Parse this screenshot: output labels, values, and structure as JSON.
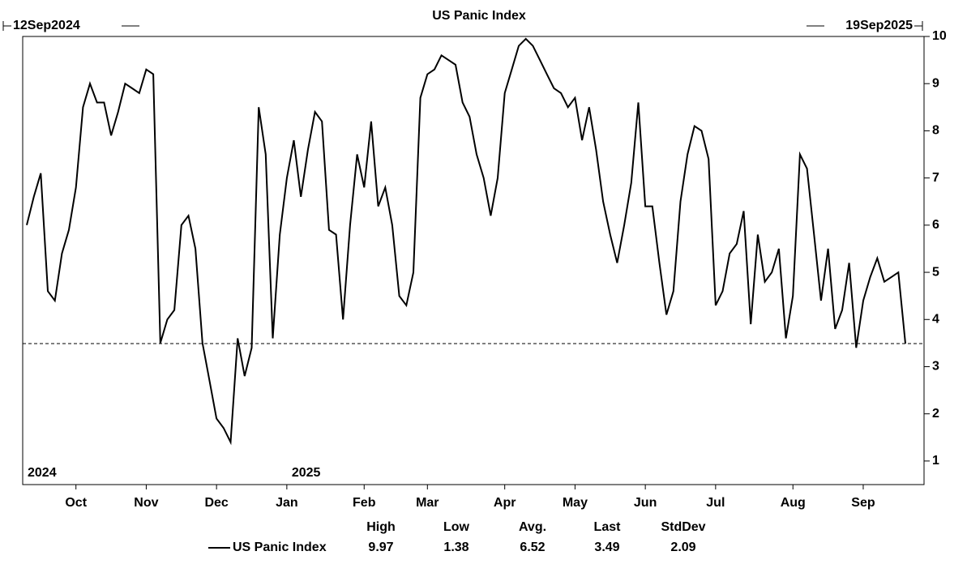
{
  "chart_data": {
    "type": "line",
    "title": "US Panic Index",
    "start_label": "12Sep2024",
    "end_label": "19Sep2025",
    "years": [
      "2024",
      "2025"
    ],
    "categories": [
      null,
      null,
      null,
      null,
      null,
      null,
      null,
      "Oct",
      null,
      null,
      null,
      null,
      null,
      null,
      null,
      null,
      null,
      "Nov",
      null,
      null,
      null,
      null,
      null,
      null,
      null,
      null,
      null,
      "Dec",
      null,
      null,
      null,
      null,
      null,
      null,
      null,
      null,
      null,
      "Jan",
      null,
      null,
      null,
      null,
      null,
      null,
      null,
      null,
      null,
      null,
      "Feb",
      null,
      null,
      null,
      null,
      null,
      null,
      null,
      null,
      "Mar",
      null,
      null,
      null,
      null,
      null,
      null,
      null,
      null,
      null,
      null,
      "Apr",
      null,
      null,
      null,
      null,
      null,
      null,
      null,
      null,
      null,
      "May",
      null,
      null,
      null,
      null,
      null,
      null,
      null,
      null,
      null,
      "Jun",
      null,
      null,
      null,
      null,
      null,
      null,
      null,
      null,
      null,
      "Jul",
      null,
      null,
      null,
      null,
      null,
      null,
      null,
      null,
      null,
      null,
      "Aug",
      null,
      null,
      null,
      null,
      null,
      null,
      null,
      null,
      null,
      "Sep",
      null,
      null,
      null,
      null,
      null,
      null
    ],
    "series": [
      {
        "name": "US Panic Index",
        "color": "#000000",
        "values": [
          6.0,
          6.6,
          7.1,
          4.6,
          4.4,
          5.4,
          5.9,
          6.8,
          8.5,
          9.0,
          8.6,
          8.6,
          7.9,
          8.4,
          9.0,
          8.9,
          8.8,
          9.3,
          9.2,
          3.5,
          4.0,
          4.2,
          6.0,
          6.2,
          5.5,
          3.5,
          2.7,
          1.9,
          1.7,
          1.4,
          3.6,
          2.8,
          3.4,
          8.5,
          7.5,
          3.6,
          5.8,
          7.0,
          7.8,
          6.6,
          7.6,
          8.4,
          8.2,
          5.9,
          5.8,
          4.0,
          6.0,
          7.5,
          6.8,
          8.2,
          6.4,
          6.8,
          6.0,
          4.5,
          4.3,
          5.0,
          8.7,
          9.2,
          9.3,
          9.6,
          9.5,
          9.4,
          8.6,
          8.3,
          7.5,
          7.0,
          6.2,
          7.0,
          8.8,
          9.3,
          9.8,
          9.95,
          9.8,
          9.5,
          9.2,
          8.9,
          8.8,
          8.5,
          8.7,
          7.8,
          8.5,
          7.6,
          6.5,
          5.8,
          5.2,
          6.0,
          6.9,
          8.6,
          6.4,
          6.4,
          5.2,
          4.1,
          4.6,
          6.5,
          7.5,
          8.1,
          8.0,
          7.4,
          4.3,
          4.6,
          5.4,
          5.6,
          6.3,
          3.9,
          5.8,
          4.8,
          5.0,
          5.5,
          3.6,
          4.5,
          7.5,
          7.2,
          5.8,
          4.4,
          5.5,
          3.8,
          4.2,
          5.2,
          3.4,
          4.4,
          4.9,
          5.3,
          4.8,
          4.9,
          5.0,
          3.49
        ]
      }
    ],
    "ylim": [
      0.5,
      10
    ],
    "yticks": [
      1,
      2,
      3,
      4,
      5,
      6,
      7,
      8,
      9,
      10
    ],
    "stats_headers": [
      "High",
      "Low",
      "Avg.",
      "Last",
      "StdDev"
    ],
    "stats_values": [
      9.97,
      1.38,
      6.52,
      3.49,
      2.09
    ]
  }
}
